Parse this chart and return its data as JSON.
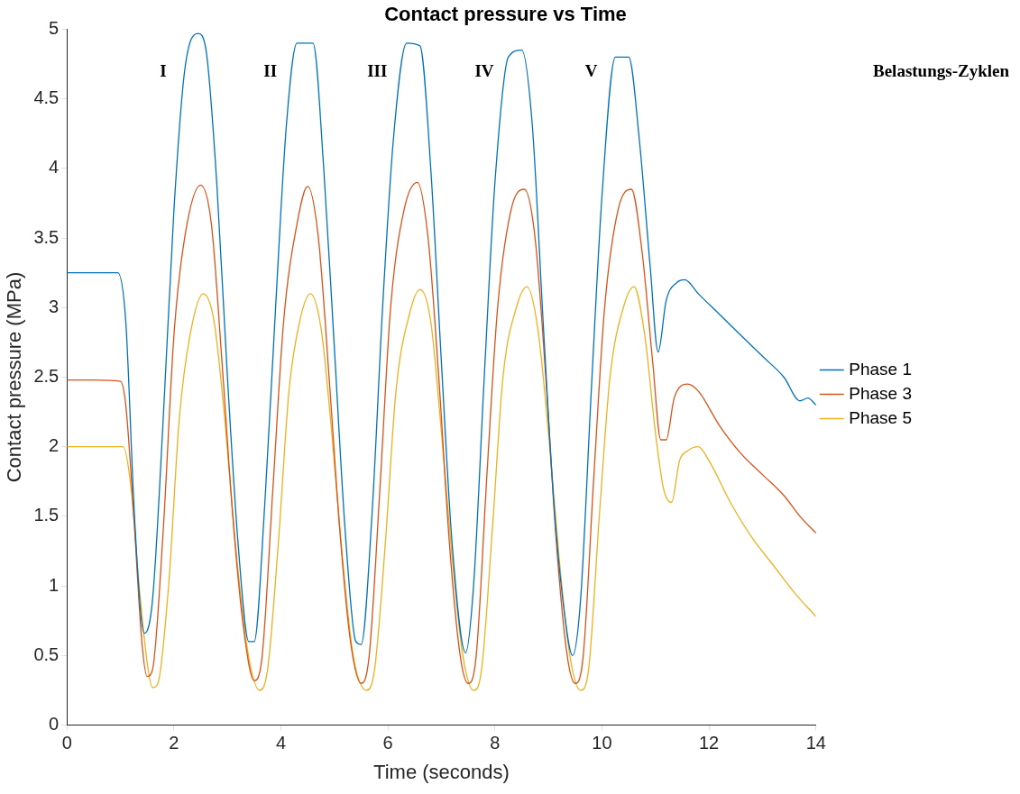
{
  "chart_data": {
    "type": "line",
    "title": "Contact pressure vs Time",
    "xlabel": "Time (seconds)",
    "ylabel": "Contact pressure (MPa)",
    "xlim": [
      0,
      14
    ],
    "xticks": [
      0,
      2,
      4,
      6,
      8,
      10,
      12,
      14
    ],
    "ylim": [
      0,
      5
    ],
    "yticks": [
      0,
      0.5,
      1,
      1.5,
      2,
      2.5,
      3,
      3.5,
      4,
      4.5,
      5
    ],
    "grid": false,
    "legend": "right",
    "marker": "none",
    "line_style": "solid",
    "annotations": [
      "I",
      "II",
      "III",
      "IV",
      "V",
      "Belastungs-Zyklen"
    ],
    "series": [
      {
        "name": "Phase 1",
        "color": "#0072bd",
        "x": [
          0,
          0.5,
          0.95,
          1.1,
          1.25,
          1.38,
          1.45,
          1.6,
          1.8,
          2.0,
          2.2,
          2.45,
          2.6,
          2.8,
          3.0,
          3.2,
          3.4,
          3.5,
          3.7,
          3.9,
          4.1,
          4.3,
          4.6,
          4.8,
          5.0,
          5.2,
          5.4,
          5.5,
          5.7,
          5.9,
          6.1,
          6.35,
          6.6,
          6.8,
          7.0,
          7.2,
          7.45,
          7.6,
          7.8,
          8.0,
          8.25,
          8.5,
          8.7,
          8.9,
          9.1,
          9.3,
          9.45,
          9.6,
          9.8,
          10.0,
          10.25,
          10.5,
          10.7,
          10.9,
          11.05,
          11.2,
          11.4,
          11.55,
          11.8,
          12.2,
          12.6,
          13.0,
          13.4,
          13.7,
          13.85,
          14.0
        ],
        "values": [
          3.25,
          3.25,
          3.25,
          2.9,
          1.6,
          0.8,
          0.66,
          0.9,
          2.2,
          3.7,
          4.7,
          4.97,
          4.85,
          3.9,
          2.5,
          1.3,
          0.6,
          0.6,
          1.6,
          3.0,
          4.3,
          4.9,
          4.9,
          4.0,
          2.7,
          1.4,
          0.6,
          0.58,
          1.5,
          3.0,
          4.2,
          4.9,
          4.88,
          4.0,
          2.6,
          1.3,
          0.52,
          1.0,
          2.5,
          3.9,
          4.8,
          4.85,
          4.3,
          2.9,
          1.6,
          0.8,
          0.5,
          0.9,
          2.4,
          3.8,
          4.8,
          4.8,
          4.2,
          3.3,
          2.68,
          3.05,
          3.18,
          3.2,
          3.1,
          2.95,
          2.8,
          2.65,
          2.5,
          2.33,
          2.35,
          2.3
        ]
      },
      {
        "name": "Phase 3",
        "color": "#d95319",
        "x": [
          0,
          0.5,
          1.0,
          1.1,
          1.25,
          1.4,
          1.5,
          1.6,
          1.8,
          2.0,
          2.2,
          2.5,
          2.7,
          2.9,
          3.1,
          3.3,
          3.5,
          3.65,
          3.85,
          4.05,
          4.3,
          4.5,
          4.7,
          4.9,
          5.1,
          5.3,
          5.5,
          5.65,
          5.85,
          6.05,
          6.3,
          6.55,
          6.75,
          6.95,
          7.15,
          7.35,
          7.5,
          7.65,
          7.85,
          8.05,
          8.3,
          8.55,
          8.75,
          8.95,
          9.15,
          9.35,
          9.5,
          9.65,
          9.85,
          10.05,
          10.3,
          10.55,
          10.75,
          10.95,
          11.1,
          11.2,
          11.35,
          11.6,
          11.8,
          12.2,
          12.6,
          13.0,
          13.4,
          13.7,
          14.0
        ],
        "values": [
          2.48,
          2.48,
          2.47,
          2.3,
          1.5,
          0.6,
          0.35,
          0.4,
          1.4,
          2.8,
          3.5,
          3.88,
          3.6,
          2.6,
          1.5,
          0.7,
          0.32,
          0.5,
          1.7,
          2.9,
          3.6,
          3.87,
          3.5,
          2.5,
          1.4,
          0.6,
          0.3,
          0.5,
          1.7,
          3.0,
          3.7,
          3.9,
          3.5,
          2.5,
          1.3,
          0.5,
          0.3,
          0.5,
          1.8,
          3.0,
          3.7,
          3.85,
          3.5,
          2.5,
          1.3,
          0.5,
          0.3,
          0.5,
          1.8,
          3.0,
          3.7,
          3.85,
          3.4,
          2.6,
          2.05,
          2.05,
          2.35,
          2.45,
          2.4,
          2.15,
          1.95,
          1.8,
          1.65,
          1.5,
          1.38
        ]
      },
      {
        "name": "Phase 5",
        "color": "#edb120",
        "x": [
          0,
          0.5,
          1.05,
          1.2,
          1.35,
          1.5,
          1.6,
          1.7,
          1.9,
          2.1,
          2.3,
          2.55,
          2.75,
          2.95,
          3.15,
          3.35,
          3.6,
          3.75,
          3.95,
          4.15,
          4.35,
          4.55,
          4.75,
          4.95,
          5.15,
          5.35,
          5.6,
          5.75,
          5.95,
          6.15,
          6.4,
          6.6,
          6.8,
          7.0,
          7.2,
          7.4,
          7.6,
          7.75,
          7.95,
          8.15,
          8.4,
          8.6,
          8.8,
          9.0,
          9.2,
          9.4,
          9.6,
          9.75,
          9.95,
          10.15,
          10.4,
          10.6,
          10.8,
          11.0,
          11.15,
          11.3,
          11.45,
          11.6,
          11.8,
          12.0,
          12.4,
          12.8,
          13.2,
          13.6,
          14.0
        ],
        "values": [
          2.0,
          2.0,
          2.0,
          1.7,
          1.0,
          0.45,
          0.27,
          0.3,
          1.0,
          2.2,
          2.8,
          3.1,
          2.9,
          2.2,
          1.3,
          0.6,
          0.25,
          0.4,
          1.3,
          2.4,
          2.9,
          3.1,
          2.85,
          2.1,
          1.2,
          0.5,
          0.25,
          0.4,
          1.3,
          2.4,
          2.95,
          3.13,
          2.9,
          2.1,
          1.2,
          0.5,
          0.25,
          0.4,
          1.4,
          2.5,
          3.0,
          3.15,
          2.85,
          2.1,
          1.2,
          0.5,
          0.25,
          0.4,
          1.5,
          2.5,
          3.0,
          3.15,
          2.8,
          2.1,
          1.7,
          1.6,
          1.9,
          1.97,
          2.0,
          1.9,
          1.6,
          1.35,
          1.15,
          0.95,
          0.78
        ]
      }
    ]
  }
}
